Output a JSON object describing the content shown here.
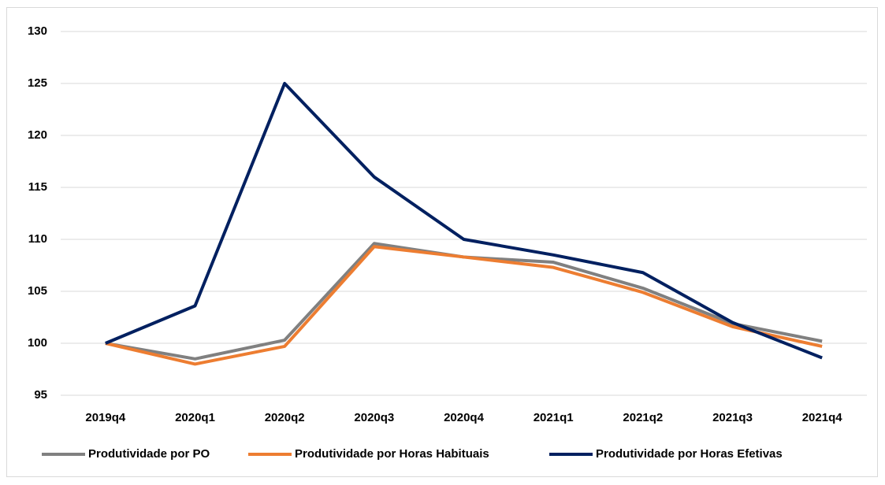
{
  "chart_data": {
    "type": "line",
    "categories": [
      "2019q4",
      "2020q1",
      "2020q2",
      "2020q3",
      "2020q4",
      "2021q1",
      "2021q2",
      "2021q3",
      "2021q4"
    ],
    "series": [
      {
        "name": "Produtividade por PO",
        "color": "#808080",
        "values": [
          100,
          98.5,
          100.3,
          109.6,
          108.3,
          107.8,
          105.3,
          101.9,
          100.2
        ]
      },
      {
        "name": "Produtividade por Horas Habituais",
        "color": "#ed7d31",
        "values": [
          100,
          98.0,
          99.7,
          109.3,
          108.3,
          107.3,
          104.9,
          101.6,
          99.7
        ]
      },
      {
        "name": "Produtividade por Horas Efetivas",
        "color": "#002060",
        "values": [
          100,
          103.6,
          125,
          116,
          110,
          108.5,
          106.8,
          102,
          98.6
        ]
      }
    ],
    "ylim": [
      95,
      130
    ],
    "yticks": [
      95,
      100,
      105,
      110,
      115,
      120,
      125,
      130
    ],
    "grid": true,
    "legend": "bottom"
  }
}
